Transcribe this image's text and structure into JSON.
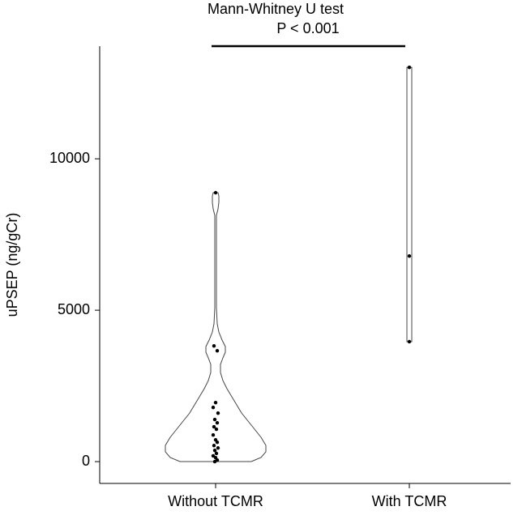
{
  "chart_data": {
    "type": "violin",
    "title": "Mann-Whitney U test",
    "subtitle": "P < 0.001",
    "y_label": "uPSEP (ng/gCr)",
    "categories": [
      "Without TCMR",
      "With TCMR"
    ],
    "values": [
      [
        8880,
        3820,
        3660,
        1950,
        1790,
        1600,
        1390,
        1280,
        1150,
        1070,
        880,
        720,
        640,
        530,
        450,
        370,
        270,
        190,
        130,
        50,
        0
      ],
      [
        13020,
        6790,
        3960
      ]
    ],
    "color": "#000000",
    "ylim": [
      -720,
      13720
    ],
    "yticks": [
      0,
      5000,
      10000
    ]
  }
}
